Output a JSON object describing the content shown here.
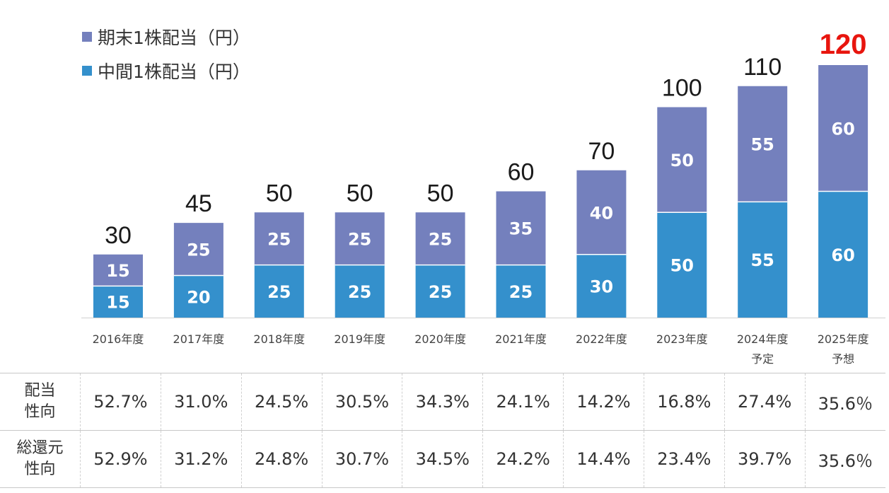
{
  "legend": {
    "end_label": "期末1株配当（円）",
    "mid_label": "中間1株配当（円）"
  },
  "colors": {
    "end": "#7480bd",
    "mid": "#3490cc",
    "highlight_total": "#e8150e"
  },
  "chart_data": {
    "type": "bar",
    "stacked": true,
    "categories": [
      [
        "2016年度"
      ],
      [
        "2017年度"
      ],
      [
        "2018年度"
      ],
      [
        "2019年度"
      ],
      [
        "2020年度"
      ],
      [
        "2021年度"
      ],
      [
        "2022年度"
      ],
      [
        "2023年度"
      ],
      [
        "2024年度",
        "予定"
      ],
      [
        "2025年度",
        "予想"
      ]
    ],
    "series": [
      {
        "name": "中間1株配当（円）",
        "values": [
          15,
          20,
          25,
          25,
          25,
          25,
          30,
          50,
          55,
          60
        ]
      },
      {
        "name": "期末1株配当（円）",
        "values": [
          15,
          25,
          25,
          25,
          25,
          35,
          40,
          50,
          55,
          60
        ]
      }
    ],
    "totals": [
      30,
      45,
      50,
      50,
      50,
      60,
      70,
      100,
      110,
      120
    ],
    "highlight_total_index": 9,
    "ylim": [
      0,
      120
    ],
    "grid": false
  },
  "table": {
    "rows": [
      {
        "label": "配当\n性向",
        "values": [
          "52.7%",
          "31.0%",
          "24.5%",
          "30.5%",
          "34.3%",
          "24.1%",
          "14.2%",
          "16.8%",
          "27.4%",
          "35.6％"
        ]
      },
      {
        "label": "総還元\n性向",
        "values": [
          "52.9%",
          "31.2%",
          "24.8%",
          "30.7%",
          "34.5%",
          "24.2%",
          "14.4%",
          "23.4%",
          "39.7%",
          "35.6％"
        ]
      }
    ]
  }
}
